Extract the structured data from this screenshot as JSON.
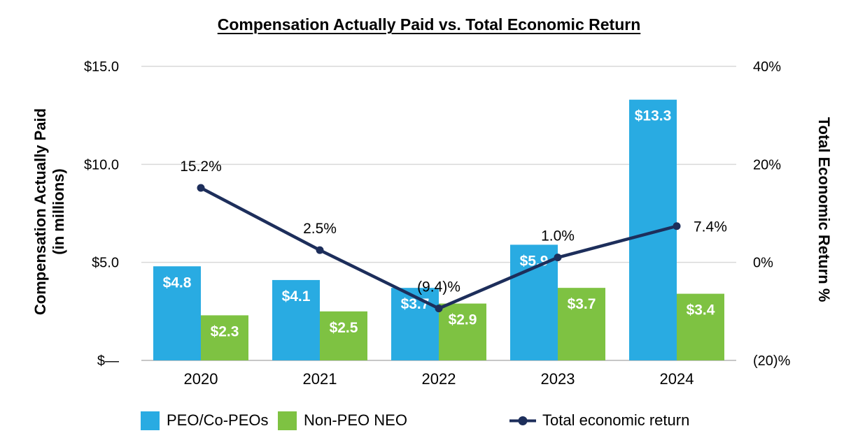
{
  "title": "Compensation Actually Paid vs. Total Economic Return",
  "left_axis": {
    "title_line1": "Compensation Actually Paid",
    "title_line2": "(in millions)"
  },
  "right_axis": {
    "title": "Total Economic Return %"
  },
  "legend": {
    "items": [
      {
        "label": "PEO/Co-PEOs",
        "swatch": "square",
        "color": "#29ABE2"
      },
      {
        "label": "Non-PEO NEO",
        "swatch": "square",
        "color": "#7EC242"
      },
      {
        "label": "Total economic return",
        "swatch": "line-with-dot",
        "color": "#1D2E5B"
      }
    ]
  },
  "chart_data": {
    "type": "combo",
    "title": "Compensation Actually Paid vs. Total Economic Return",
    "categories": [
      "2020",
      "2021",
      "2022",
      "2023",
      "2024"
    ],
    "series": [
      {
        "name": "PEO/Co-PEOs",
        "type": "bar",
        "axis": "left",
        "color": "#29ABE2",
        "values": [
          4.8,
          4.1,
          3.7,
          5.9,
          13.3
        ],
        "labels": [
          "$4.8",
          "$4.1",
          "$3.7",
          "$5.9",
          "$13.3"
        ]
      },
      {
        "name": "Non-PEO NEO",
        "type": "bar",
        "axis": "left",
        "color": "#7EC242",
        "values": [
          2.3,
          2.5,
          2.9,
          3.7,
          3.4
        ],
        "labels": [
          "$2.3",
          "$2.5",
          "$2.9",
          "$3.7",
          "$3.4"
        ]
      },
      {
        "name": "Total economic return",
        "type": "line",
        "axis": "right",
        "color": "#1D2E5B",
        "values": [
          15.2,
          2.5,
          -9.4,
          1.0,
          7.4
        ],
        "labels": [
          "15.2%",
          "2.5%",
          "(9.4)%",
          "1.0%",
          "7.4%"
        ]
      }
    ],
    "left_axis": {
      "label": "Compensation Actually Paid (in millions)",
      "tick_values": [
        0,
        5,
        10,
        15
      ],
      "tick_labels": [
        "$—",
        "$5.0",
        "$10.0",
        "$15.0"
      ],
      "range": [
        0,
        15
      ]
    },
    "right_axis": {
      "label": "Total Economic Return %",
      "tick_values": [
        -20,
        0,
        20,
        40
      ],
      "tick_labels": [
        "(20)%",
        "0%",
        "20%",
        "40%"
      ],
      "range": [
        -20,
        40
      ]
    },
    "grid": "horizontal",
    "legend_position": "bottom",
    "grid_color": "#D9D9D9",
    "baseline_color": "#BFBFBF",
    "bar_label_color": "#FFFFFF"
  }
}
